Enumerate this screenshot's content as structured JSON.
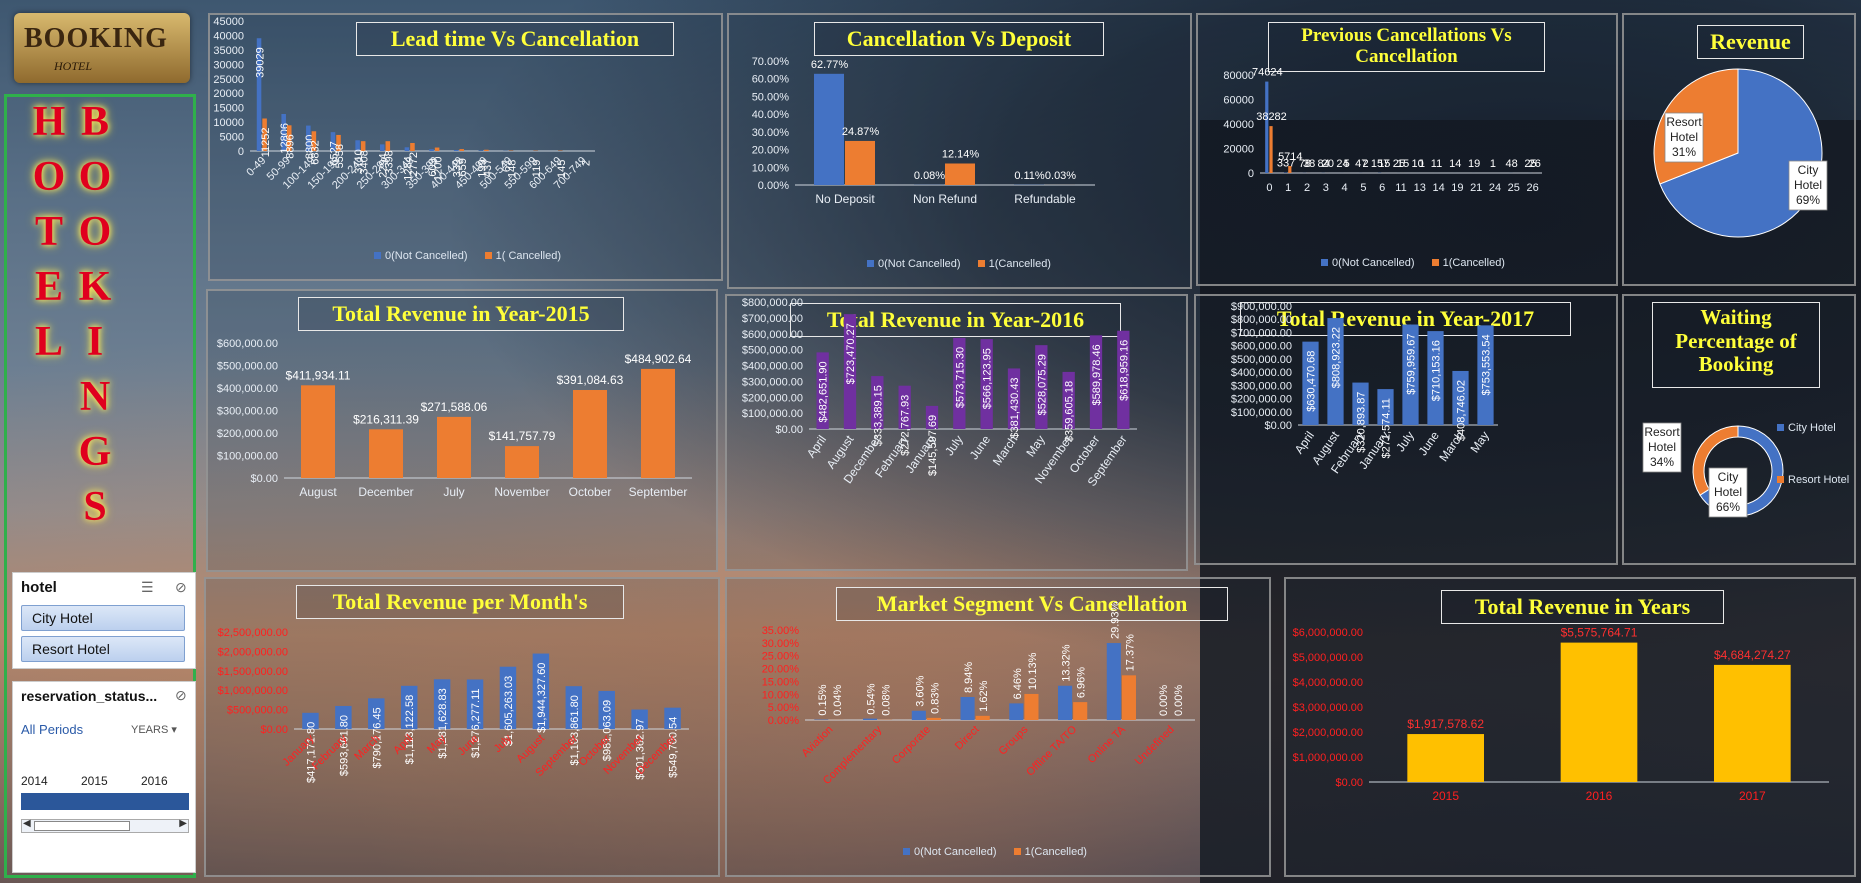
{
  "logo": {
    "line1": "BOOKING",
    "line2": "HOTEL"
  },
  "side_title": {
    "left": [
      "H",
      "O",
      "T",
      "E",
      "L"
    ],
    "right": [
      "B",
      "O",
      "O",
      "K",
      "I",
      "N",
      "G",
      "S"
    ]
  },
  "hotel_slicer": {
    "title": "hotel",
    "items": [
      "City Hotel",
      "Resort Hotel"
    ]
  },
  "timeline": {
    "title": "reservation_status...",
    "all_periods": "All Periods",
    "unit": "YEARS",
    "years": [
      "2014",
      "2015",
      "2016"
    ]
  },
  "colors": {
    "blue": "#4472c4",
    "orange": "#ed7d31",
    "purple": "#7030a0",
    "gold": "#ffc000",
    "title": "#ffff3a",
    "red_label": "#ff2020"
  },
  "chart_data": [
    {
      "id": "lead",
      "type": "bar",
      "title": "Lead time Vs Cancellation",
      "categories": [
        "0-49",
        "50-99",
        "100-149",
        "150-199",
        "200-249",
        "250-299",
        "300-349",
        "350-399",
        "400-449",
        "450-499",
        "500-549",
        "550-599",
        "600-649",
        "700-749"
      ],
      "series": [
        {
          "name": "0(Not Cancelled)",
          "values": [
            39029,
            12806,
            8800,
            6527,
            3710,
            2294,
            1284,
            609,
            339,
            199,
            67,
            0,
            0,
            0
          ],
          "labels": [
            "39029",
            "12806",
            "8800",
            "6527",
            "3710",
            "2294",
            "1284",
            "609",
            "339",
            "199",
            "67",
            "",
            "",
            ""
          ]
        },
        {
          "name": "1( Cancelled)",
          "values": [
            11252,
            8896,
            6832,
            5558,
            3408,
            3398,
            2772,
            1200,
            659,
            437,
            148,
            119,
            145,
            2
          ],
          "labels": [
            "11252",
            "8896",
            "6832",
            "5558",
            "3408",
            "3398",
            "2772",
            "1200",
            "659",
            "437",
            "148",
            "119",
            "145",
            "2"
          ]
        }
      ],
      "yticks": [
        "45000",
        "40000",
        "35000",
        "30000",
        "25000",
        "20000",
        "15000",
        "10000",
        "5000",
        "0"
      ],
      "ylim": [
        0,
        45000
      ]
    },
    {
      "id": "deposit",
      "type": "bar",
      "title": "Cancellation Vs Deposit",
      "categories": [
        "No Deposit",
        "Non Refund",
        "Refundable"
      ],
      "series": [
        {
          "name": "0(Not Cancelled)",
          "values": [
            62.77,
            0.08,
            0.11
          ],
          "labels": [
            "62.77%",
            "0.08%",
            "0.11%"
          ]
        },
        {
          "name": "1(Cancelled)",
          "values": [
            24.87,
            12.14,
            0.03
          ],
          "labels": [
            "24.87%",
            "12.14%",
            "0.03%"
          ]
        }
      ],
      "yticks": [
        "70.00%",
        "60.00%",
        "50.00%",
        "40.00%",
        "30.00%",
        "20.00%",
        "10.00%",
        "0.00%"
      ],
      "ylim": [
        0,
        70
      ]
    },
    {
      "id": "prev",
      "type": "bar",
      "title": "Previous Cancellations Vs Cancellation",
      "categories": [
        "0",
        "1",
        "2",
        "3",
        "4",
        "5",
        "6",
        "11",
        "13",
        "14",
        "19",
        "21",
        "24",
        "25",
        "26"
      ],
      "series": [
        {
          "name": "0(Not Cancelled)",
          "values": [
            74624,
            337,
            78,
            84,
            24,
            47,
            157,
            25,
            10,
            11,
            14,
            19,
            1,
            48,
            25
          ],
          "labels": [
            "74624",
            "337",
            "78",
            "84",
            "24",
            "47",
            "157",
            "25",
            "10",
            "11",
            "14",
            "19",
            "1",
            "48",
            "25"
          ]
        },
        {
          "name": "1(Cancelled)",
          "values": [
            38282,
            5714,
            38,
            20,
            5,
            2,
            15,
            15,
            1,
            0,
            0,
            0,
            0,
            0,
            26
          ],
          "labels": [
            "38282",
            "5714",
            "38",
            "20",
            "5",
            "2",
            "15",
            "15",
            "1",
            "",
            "",
            "",
            "",
            "",
            "26"
          ]
        }
      ],
      "yticks": [
        "80000",
        "60000",
        "40000",
        "20000",
        "0"
      ],
      "ylim": [
        0,
        80000
      ]
    },
    {
      "id": "revpie",
      "type": "pie",
      "title": "Revenue",
      "slices": [
        {
          "name": "City Hotel",
          "value": 69,
          "label": "City Hotel 69%"
        },
        {
          "name": "Resort Hotel",
          "value": 31,
          "label": "Resort Hotel 31%"
        }
      ]
    },
    {
      "id": "y2015",
      "type": "bar",
      "title": "Total Revenue in Year-2015",
      "categories": [
        "August",
        "December",
        "July",
        "November",
        "October",
        "September"
      ],
      "values": [
        411934.11,
        216311.39,
        271588.06,
        141757.79,
        391084.63,
        484902.64
      ],
      "labels": [
        "$411,934.11",
        "$216,311.39",
        "$271,588.06",
        "$141,757.79",
        "$391,084.63",
        "$484,902.64"
      ],
      "yticks": [
        "$600,000.00",
        "$500,000.00",
        "$400,000.00",
        "$300,000.00",
        "$200,000.00",
        "$100,000.00",
        "$0.00"
      ],
      "ylim": [
        0,
        600000
      ]
    },
    {
      "id": "y2016",
      "type": "bar",
      "title": "Total Revenue in Year-2016",
      "categories": [
        "April",
        "August",
        "December",
        "February",
        "January",
        "July",
        "June",
        "March",
        "May",
        "November",
        "October",
        "September"
      ],
      "values": [
        482651.9,
        723470.27,
        333389.15,
        272767.93,
        145597.69,
        573715.3,
        566123.95,
        381430.43,
        528075.29,
        359605.18,
        589978.46,
        618959.16
      ],
      "labels": [
        "$482,651.90",
        "$723,470.27",
        "$333,389.15",
        "$272,767.93",
        "$145,597.69",
        "$573,715.30",
        "$566,123.95",
        "$381,430.43",
        "$528,075.29",
        "$359,605.18",
        "$589,978.46",
        "$618,959.16"
      ],
      "yticks": [
        "$800,000.00",
        "$700,000.00",
        "$600,000.00",
        "$500,000.00",
        "$400,000.00",
        "$300,000.00",
        "$200,000.00",
        "$100,000.00",
        "$0.00"
      ],
      "ylim": [
        0,
        800000
      ]
    },
    {
      "id": "y2017",
      "type": "bar",
      "title": "Total Revenue in Year-2017",
      "categories": [
        "April",
        "August",
        "February",
        "January",
        "July",
        "June",
        "March",
        "May"
      ],
      "values": [
        630470.68,
        808923.22,
        320893.87,
        271574.11,
        759959.67,
        710153.16,
        408746.02,
        753553.54
      ],
      "labels": [
        "$630,470.68",
        "$808,923.22",
        "$320,893.87",
        "$271,574.11",
        "$759,959.67",
        "$710,153.16",
        "$408,746.02",
        "$753,553.54"
      ],
      "yticks": [
        "$900,000.00",
        "$800,000.00",
        "$700,000.00",
        "$600,000.00",
        "$500,000.00",
        "$400,000.00",
        "$300,000.00",
        "$200,000.00",
        "$100,000.00",
        "$0.00"
      ],
      "ylim": [
        0,
        900000
      ]
    },
    {
      "id": "wait",
      "type": "pie",
      "title": "Waiting Percentage of Booking",
      "slices": [
        {
          "name": "City Hotel",
          "value": 66,
          "label": "City Hotel 66%"
        },
        {
          "name": "Resort Hotel",
          "value": 34,
          "label": "Resort Hotel 34%"
        }
      ]
    },
    {
      "id": "months",
      "type": "bar",
      "title": "Total Revenue per Month's",
      "categories": [
        "January",
        "February",
        "March",
        "April",
        "May",
        "June",
        "July",
        "August",
        "September",
        "October",
        "November",
        "December"
      ],
      "values": [
        417171.8,
        593661.8,
        790176.45,
        1113122.58,
        1281628.83,
        1276277.11,
        1605263.03,
        1944327.6,
        1103861.8,
        981063.09,
        501362.97,
        549700.54
      ],
      "labels": [
        "$417,171.80",
        "$593,661.80",
        "$790,176.45",
        "$1,113,122.58",
        "$1,281,628.83",
        "$1,276,277.11",
        "$1,605,263.03",
        "$1,944,327.60",
        "$1,103,861.80",
        "$981,063.09",
        "$501,362.97",
        "$549,700.54"
      ],
      "yticks": [
        "$2,500,000.00",
        "$2,000,000.00",
        "$1,500,000.00",
        "$1,000,000.00",
        "$500,000.00",
        "$0.00"
      ],
      "ylim": [
        0,
        2500000
      ]
    },
    {
      "id": "market",
      "type": "bar",
      "title": "Market Segment Vs Cancellation",
      "categories": [
        "Aviation",
        "Complementary",
        "Corporate",
        "Direct",
        "Groups",
        "Offline TA/TO",
        "Online TA",
        "Undefined"
      ],
      "series": [
        {
          "name": "0(Not Cancelled)",
          "values": [
            0.15,
            0.54,
            3.6,
            8.94,
            6.46,
            13.32,
            29.93,
            0.0
          ],
          "labels": [
            "0.15%",
            "0.54%",
            "3.60%",
            "8.94%",
            "6.46%",
            "13.32%",
            "29.93%",
            "0.00%"
          ]
        },
        {
          "name": "1(Cancelled)",
          "values": [
            0.04,
            0.08,
            0.83,
            1.62,
            10.13,
            6.96,
            17.37,
            0.0
          ],
          "labels": [
            "0.04%",
            "0.08%",
            "0.83%",
            "1.62%",
            "10.13%",
            "6.96%",
            "17.37%",
            "0.00%"
          ]
        }
      ],
      "yticks": [
        "35.00%",
        "30.00%",
        "25.00%",
        "20.00%",
        "15.00%",
        "10.00%",
        "5.00%",
        "0.00%"
      ],
      "ylim": [
        0,
        35
      ]
    },
    {
      "id": "years",
      "type": "bar",
      "title": "Total Revenue in Years",
      "categories": [
        "2015",
        "2016",
        "2017"
      ],
      "values": [
        1917578.62,
        5575764.71,
        4684274.27
      ],
      "labels": [
        "$1,917,578.62",
        "$5,575,764.71",
        "$4,684,274.27"
      ],
      "yticks": [
        "$6,000,000.00",
        "$5,000,000.00",
        "$4,000,000.00",
        "$3,000,000.00",
        "$2,000,000.00",
        "$1,000,000.00",
        "$0.00"
      ],
      "ylim": [
        0,
        6000000
      ]
    }
  ]
}
